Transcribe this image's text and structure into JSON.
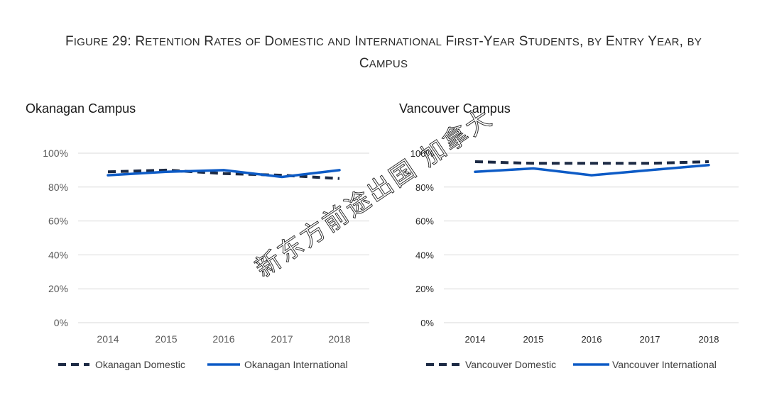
{
  "figure_title": {
    "line1": "Figure 29: Retention Rates of Domestic and International First-Year Students, by Entry Year, by",
    "line2": "Campus"
  },
  "watermark": "新东方前途出国 加拿大",
  "colors": {
    "domestic": "#1c2a44",
    "international": "#0d5bc6",
    "grid": "#d9d9d9"
  },
  "chart_data": [
    {
      "type": "line",
      "title": "Okanagan Campus",
      "categories": [
        "2014",
        "2015",
        "2016",
        "2017",
        "2018"
      ],
      "yticks": [
        "0%",
        "20%",
        "40%",
        "60%",
        "80%",
        "100%"
      ],
      "ylim": [
        0,
        100
      ],
      "grid": true,
      "legend_position": "bottom",
      "series": [
        {
          "name": "Okanagan Domestic",
          "style": "dashed",
          "values": [
            89,
            90,
            88,
            87,
            85
          ]
        },
        {
          "name": "Okanagan International",
          "style": "solid",
          "values": [
            87,
            89,
            90,
            86,
            90
          ]
        }
      ]
    },
    {
      "type": "line",
      "title": "Vancouver Campus",
      "categories": [
        "2014",
        "2015",
        "2016",
        "2017",
        "2018"
      ],
      "yticks": [
        "0%",
        "20%",
        "40%",
        "60%",
        "80%",
        "100%"
      ],
      "ylim": [
        0,
        100
      ],
      "grid": true,
      "legend_position": "bottom",
      "series": [
        {
          "name": "Vancouver Domestic",
          "style": "dashed",
          "values": [
            95,
            94,
            94,
            94,
            95
          ]
        },
        {
          "name": "Vancouver International",
          "style": "solid",
          "values": [
            89,
            91,
            87,
            90,
            93
          ]
        }
      ]
    }
  ]
}
